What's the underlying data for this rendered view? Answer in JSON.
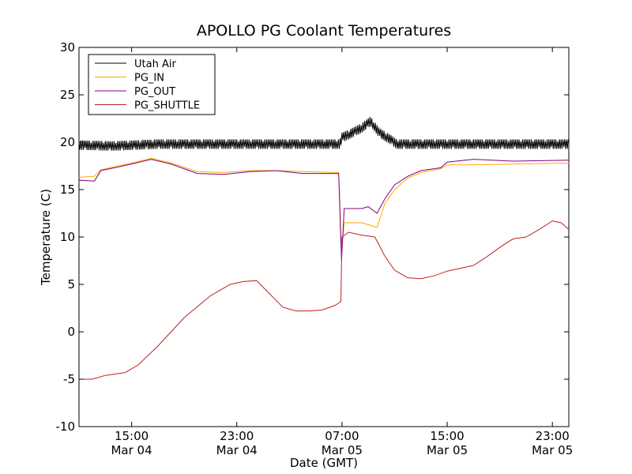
{
  "chart_data": {
    "type": "line",
    "title": "APOLLO PG Coolant Temperatures",
    "xlabel": "Date (GMT)",
    "ylabel": "Temperature (C)",
    "xlim": [
      "2015-03-04T11:00",
      "2015-03-06T00:15"
    ],
    "ylim": [
      -10,
      30
    ],
    "yticks": [
      "-10",
      "-5",
      "0",
      "5",
      "10",
      "15",
      "20",
      "25",
      "30"
    ],
    "xticks": [
      {
        "at": "2015-03-04T15:00",
        "time": "15:00",
        "date": "Mar 04"
      },
      {
        "at": "2015-03-04T23:00",
        "time": "23:00",
        "date": "Mar 04"
      },
      {
        "at": "2015-03-05T07:00",
        "time": "07:00",
        "date": "Mar 05"
      },
      {
        "at": "2015-03-05T15:00",
        "time": "15:00",
        "date": "Mar 05"
      },
      {
        "at": "2015-03-05T23:00",
        "time": "23:00",
        "date": "Mar 05"
      }
    ],
    "legend": {
      "position": "top-left"
    },
    "grid": false,
    "series": [
      {
        "name": "Utah Air",
        "color": "#000000",
        "oscillation": 0.5,
        "points": [
          [
            "2015-03-04T11:00",
            19.7
          ],
          [
            "2015-03-04T13:30",
            19.6
          ],
          [
            "2015-03-04T17:00",
            19.8
          ],
          [
            "2015-03-05T06:50",
            19.8
          ],
          [
            "2015-03-05T07:00",
            20.5
          ],
          [
            "2015-03-05T07:30",
            20.8
          ],
          [
            "2015-03-05T08:30",
            21.5
          ],
          [
            "2015-03-05T09:10",
            22.2
          ],
          [
            "2015-03-05T09:50",
            21.0
          ],
          [
            "2015-03-05T10:40",
            20.3
          ],
          [
            "2015-03-05T11:10",
            19.8
          ],
          [
            "2015-03-06T00:15",
            19.8
          ]
        ]
      },
      {
        "name": "PG_IN",
        "color": "#ffaa00",
        "points": [
          [
            "2015-03-04T11:00",
            16.3
          ],
          [
            "2015-03-04T12:10",
            16.4
          ],
          [
            "2015-03-04T12:40",
            17.1
          ],
          [
            "2015-03-04T14:00",
            17.5
          ],
          [
            "2015-03-04T15:00",
            17.8
          ],
          [
            "2015-03-04T16:30",
            18.3
          ],
          [
            "2015-03-04T18:00",
            17.8
          ],
          [
            "2015-03-04T20:00",
            16.9
          ],
          [
            "2015-03-04T22:00",
            16.8
          ],
          [
            "2015-03-05T00:00",
            17.0
          ],
          [
            "2015-03-05T02:00",
            17.0
          ],
          [
            "2015-03-05T04:00",
            16.9
          ],
          [
            "2015-03-05T06:45",
            16.8
          ],
          [
            "2015-03-05T06:58",
            8.5
          ],
          [
            "2015-03-05T07:10",
            11.5
          ],
          [
            "2015-03-05T08:30",
            11.5
          ],
          [
            "2015-03-05T09:00",
            11.3
          ],
          [
            "2015-03-05T09:40",
            11.0
          ],
          [
            "2015-03-05T10:15",
            13.5
          ],
          [
            "2015-03-05T11:00",
            15.0
          ],
          [
            "2015-03-05T12:00",
            16.2
          ],
          [
            "2015-03-05T13:00",
            16.8
          ],
          [
            "2015-03-05T14:30",
            17.2
          ],
          [
            "2015-03-05T15:00",
            17.6
          ],
          [
            "2015-03-05T17:00",
            17.6
          ],
          [
            "2015-03-05T20:00",
            17.7
          ],
          [
            "2015-03-06T00:15",
            17.8
          ]
        ]
      },
      {
        "name": "PG_OUT",
        "color": "#800080",
        "points": [
          [
            "2015-03-04T11:00",
            16.0
          ],
          [
            "2015-03-04T12:10",
            15.9
          ],
          [
            "2015-03-04T12:40",
            17.0
          ],
          [
            "2015-03-04T14:00",
            17.4
          ],
          [
            "2015-03-04T15:00",
            17.7
          ],
          [
            "2015-03-04T16:30",
            18.2
          ],
          [
            "2015-03-04T18:00",
            17.7
          ],
          [
            "2015-03-04T20:00",
            16.7
          ],
          [
            "2015-03-04T22:00",
            16.6
          ],
          [
            "2015-03-05T00:00",
            16.9
          ],
          [
            "2015-03-05T02:00",
            17.0
          ],
          [
            "2015-03-05T04:00",
            16.7
          ],
          [
            "2015-03-05T06:45",
            16.7
          ],
          [
            "2015-03-05T06:58",
            7.5
          ],
          [
            "2015-03-05T07:10",
            13.0
          ],
          [
            "2015-03-05T08:30",
            13.0
          ],
          [
            "2015-03-05T09:00",
            13.2
          ],
          [
            "2015-03-05T09:40",
            12.5
          ],
          [
            "2015-03-05T10:15",
            14.0
          ],
          [
            "2015-03-05T11:00",
            15.5
          ],
          [
            "2015-03-05T12:00",
            16.4
          ],
          [
            "2015-03-05T13:00",
            17.0
          ],
          [
            "2015-03-05T14:30",
            17.3
          ],
          [
            "2015-03-05T15:00",
            17.9
          ],
          [
            "2015-03-05T17:00",
            18.2
          ],
          [
            "2015-03-05T20:00",
            18.0
          ],
          [
            "2015-03-06T00:15",
            18.1
          ]
        ]
      },
      {
        "name": "PG_SHUTTLE",
        "color": "#c02020",
        "points": [
          [
            "2015-03-04T11:00",
            -5.0
          ],
          [
            "2015-03-04T12:00",
            -5.0
          ],
          [
            "2015-03-04T13:00",
            -4.6
          ],
          [
            "2015-03-04T14:30",
            -4.3
          ],
          [
            "2015-03-04T15:30",
            -3.5
          ],
          [
            "2015-03-04T17:00",
            -1.5
          ],
          [
            "2015-03-04T19:00",
            1.5
          ],
          [
            "2015-03-04T21:00",
            3.8
          ],
          [
            "2015-03-04T22:30",
            5.0
          ],
          [
            "2015-03-04T23:30",
            5.3
          ],
          [
            "2015-03-05T00:30",
            5.4
          ],
          [
            "2015-03-05T01:30",
            4.0
          ],
          [
            "2015-03-05T02:30",
            2.6
          ],
          [
            "2015-03-05T03:30",
            2.2
          ],
          [
            "2015-03-05T04:30",
            2.2
          ],
          [
            "2015-03-05T05:30",
            2.3
          ],
          [
            "2015-03-05T06:30",
            2.8
          ],
          [
            "2015-03-05T06:55",
            3.2
          ],
          [
            "2015-03-05T07:00",
            10.0
          ],
          [
            "2015-03-05T07:30",
            10.5
          ],
          [
            "2015-03-05T08:30",
            10.2
          ],
          [
            "2015-03-05T09:30",
            10.0
          ],
          [
            "2015-03-05T10:15",
            8.0
          ],
          [
            "2015-03-05T11:00",
            6.5
          ],
          [
            "2015-03-05T12:00",
            5.7
          ],
          [
            "2015-03-05T13:00",
            5.6
          ],
          [
            "2015-03-05T14:00",
            5.9
          ],
          [
            "2015-03-05T15:00",
            6.4
          ],
          [
            "2015-03-05T16:00",
            6.7
          ],
          [
            "2015-03-05T17:00",
            7.0
          ],
          [
            "2015-03-05T18:00",
            7.9
          ],
          [
            "2015-03-05T19:00",
            8.9
          ],
          [
            "2015-03-05T20:00",
            9.8
          ],
          [
            "2015-03-05T21:00",
            10.0
          ],
          [
            "2015-03-05T22:00",
            10.8
          ],
          [
            "2015-03-05T23:00",
            11.7
          ],
          [
            "2015-03-05T23:40",
            11.5
          ],
          [
            "2015-03-06T00:15",
            10.8
          ]
        ]
      }
    ]
  }
}
